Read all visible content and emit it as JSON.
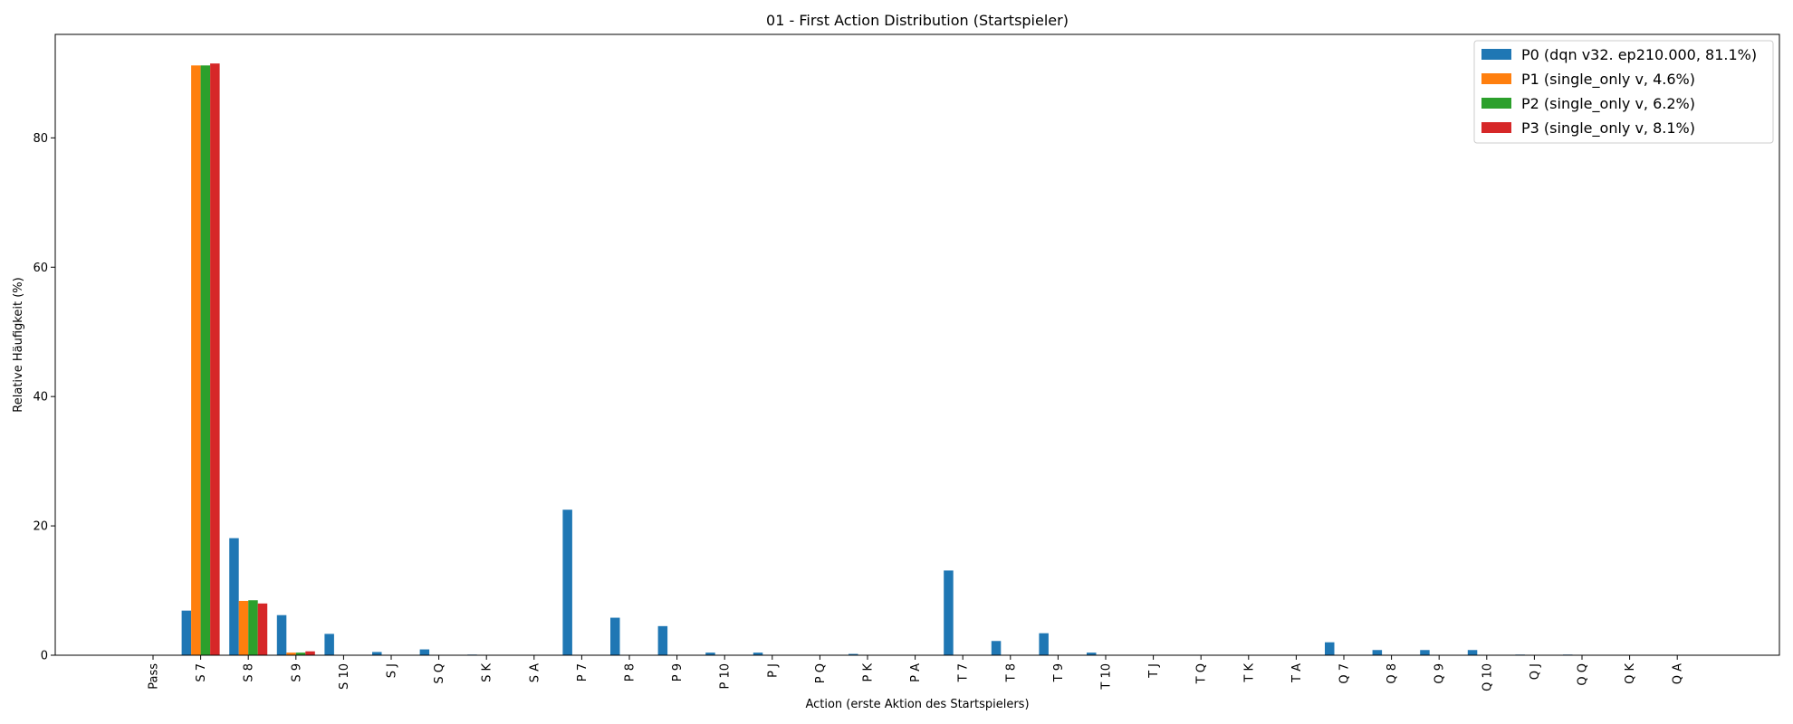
{
  "chart_data": {
    "type": "bar",
    "title": "01 - First Action Distribution (Startspieler)",
    "xlabel": "Action (erste Aktion des Startspielers)",
    "ylabel": "Relative Häufigkeit (%)",
    "ylim": [
      0,
      96
    ],
    "yticks": [
      0,
      20,
      40,
      60,
      80
    ],
    "grid": false,
    "legend_position": "top-right",
    "categories": [
      "Pass",
      "S 7",
      "S 8",
      "S 9",
      "S 10",
      "S J",
      "S Q",
      "S K",
      "S A",
      "P 7",
      "P 8",
      "P 9",
      "P 10",
      "P J",
      "P Q",
      "P K",
      "P A",
      "T 7",
      "T 8",
      "T 9",
      "T 10",
      "T J",
      "T Q",
      "T K",
      "T A",
      "Q 7",
      "Q 8",
      "Q 9",
      "Q 10",
      "Q J",
      "Q Q",
      "Q K",
      "Q A"
    ],
    "series": [
      {
        "name": "P0 (dqn v32. ep210.000, 81.1%)",
        "color": "#1f77b4",
        "values": [
          0,
          6.9,
          18.1,
          6.2,
          3.3,
          0.5,
          0.9,
          0.1,
          0,
          22.5,
          5.8,
          4.5,
          0.4,
          0.4,
          0,
          0.2,
          0,
          13.1,
          2.2,
          3.4,
          0.4,
          0,
          0,
          0,
          0,
          2.0,
          0.8,
          0.8,
          0.8,
          0.1,
          0.1,
          0,
          0
        ]
      },
      {
        "name": "P1 (single_only v, 4.6%)",
        "color": "#ff7f0e",
        "values": [
          0,
          91.2,
          8.4,
          0.4,
          0,
          0,
          0,
          0,
          0,
          0,
          0,
          0,
          0,
          0,
          0,
          0,
          0,
          0,
          0,
          0,
          0,
          0,
          0,
          0,
          0,
          0,
          0,
          0,
          0,
          0,
          0,
          0,
          0
        ]
      },
      {
        "name": "P2 (single_only v, 6.2%)",
        "color": "#2ca02c",
        "values": [
          0,
          91.2,
          8.5,
          0.4,
          0,
          0,
          0,
          0,
          0,
          0,
          0,
          0,
          0,
          0,
          0,
          0,
          0,
          0,
          0,
          0,
          0,
          0,
          0,
          0,
          0,
          0,
          0,
          0,
          0,
          0,
          0,
          0,
          0
        ]
      },
      {
        "name": "P3 (single_only v, 8.1%)",
        "color": "#d62728",
        "values": [
          0,
          91.5,
          8.0,
          0.6,
          0,
          0,
          0,
          0,
          0,
          0,
          0,
          0,
          0,
          0,
          0,
          0,
          0,
          0,
          0,
          0,
          0,
          0,
          0,
          0,
          0,
          0,
          0,
          0,
          0,
          0,
          0,
          0,
          0
        ]
      }
    ]
  }
}
